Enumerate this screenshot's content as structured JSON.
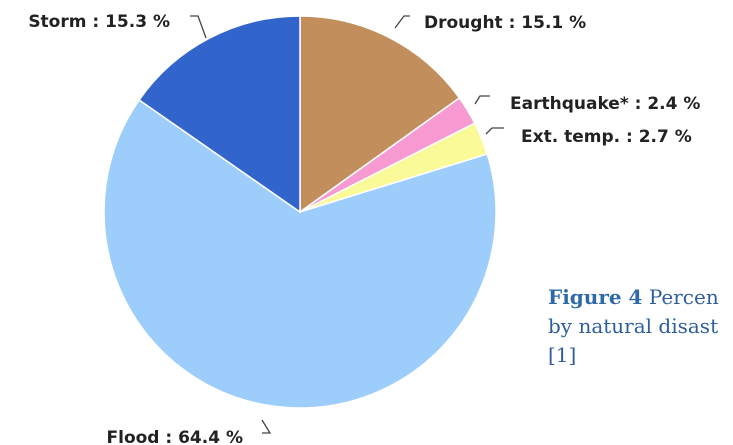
{
  "chart_data": {
    "type": "pie",
    "slices": [
      {
        "label": "Drought",
        "value": 15.1,
        "text": "Drought : 15.1 %",
        "color": "#c18e5c"
      },
      {
        "label": "Earthquake*",
        "value": 2.4,
        "text": "Earthquake* : 2.4 %",
        "color": "#f79ad2"
      },
      {
        "label": "Ext. temp.",
        "value": 2.7,
        "text": "Ext. temp. : 2.7 %",
        "color": "#fafa98"
      },
      {
        "label": "Flood",
        "value": 64.4,
        "text": "Flood : 64.4 %",
        "color": "#9ccdfb"
      },
      {
        "label": "Storm",
        "value": 15.3,
        "text": "Storm : 15.3 %",
        "color": "#3265cc"
      }
    ],
    "start": "12 o'clock",
    "direction": "clockwise"
  },
  "caption": {
    "label": "Figure 4",
    "line1": "Percen",
    "line2": "by natural disast",
    "line3": "[1]"
  }
}
